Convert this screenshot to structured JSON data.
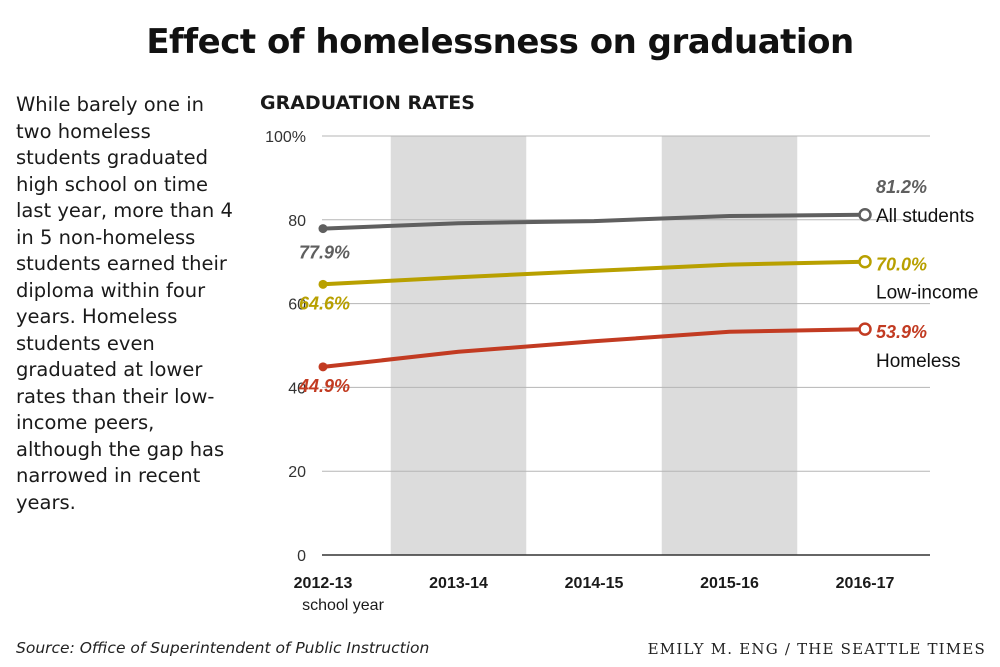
{
  "title": "Effect of homelessness on graduation",
  "intro_text": "While barely one in two homeless students graduated high school on time last year, more than 4 in 5 non-homeless students earned their diploma within four years. Homeless students even graduated at lower rates than their low-income peers, although the gap has narrowed in recent years.",
  "source": "Source: Office of Superintendent of Public Instruction",
  "credit": "EMILY M. ENG / THE SEATTLE TIMES",
  "chart_data": {
    "type": "line",
    "title": "GRADUATION RATES",
    "categories": [
      "2012-13",
      "2013-14",
      "2014-15",
      "2015-16",
      "2016-17"
    ],
    "xlabel": "school year",
    "ylim": [
      0,
      100
    ],
    "yticks": [
      0,
      20,
      40,
      60,
      80,
      100
    ],
    "ytick_labels": [
      "0",
      "20",
      "40",
      "60",
      "80",
      "100%"
    ],
    "grid": true,
    "shaded_bands": [
      "2013-14",
      "2015-16"
    ],
    "series": [
      {
        "name": "All students",
        "color": "#5f5f5f",
        "values": [
          77.9,
          79.2,
          79.7,
          80.9,
          81.2
        ],
        "start_label": "77.9%",
        "end_label": "81.2%"
      },
      {
        "name": "Low-income",
        "color": "#b8a000",
        "values": [
          64.6,
          66.3,
          67.8,
          69.3,
          70.0
        ],
        "start_label": "64.6%",
        "end_label": "70.0%"
      },
      {
        "name": "Homeless",
        "color": "#c23b22",
        "values": [
          44.9,
          48.5,
          51.0,
          53.3,
          53.9
        ],
        "start_label": "44.9%",
        "end_label": "53.9%"
      }
    ]
  }
}
